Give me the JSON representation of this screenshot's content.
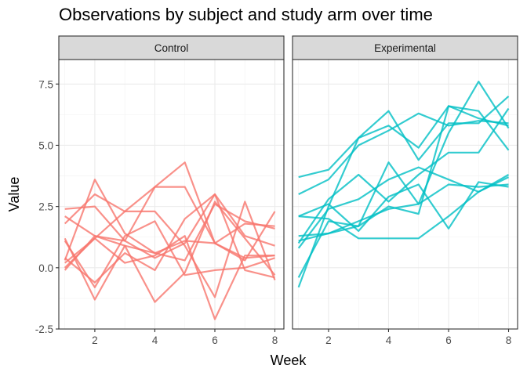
{
  "chart_data": {
    "type": "line",
    "title": "Observations by subject and study arm over time",
    "xlabel": "Week",
    "ylabel": "Value",
    "xlim": [
      0.8,
      8.3
    ],
    "ylim": [
      -2.5,
      8.5
    ],
    "x_ticks": [
      2,
      4,
      6,
      8
    ],
    "y_ticks": [
      -2.5,
      0.0,
      2.5,
      5.0,
      7.5
    ],
    "y_tick_labels": [
      "-2.5",
      "0.0",
      "2.5",
      "5.0",
      "7.5"
    ],
    "grid": true,
    "facets": [
      {
        "label": "Control",
        "color": "#F8766D",
        "x": [
          1,
          2,
          3,
          4,
          5,
          6,
          7,
          8
        ],
        "series": [
          {
            "values": [
              2.1,
              1.3,
              1.1,
              0.4,
              1.0,
              3.0,
              1.3,
              0.9
            ]
          },
          {
            "values": [
              1.1,
              -0.8,
              1.3,
              1.9,
              -0.3,
              -0.1,
              0.0,
              0.4
            ]
          },
          {
            "values": [
              2.4,
              2.5,
              1.1,
              3.3,
              3.3,
              1.0,
              1.8,
              1.7
            ]
          },
          {
            "values": [
              0.3,
              3.6,
              1.4,
              0.6,
              0.3,
              2.6,
              1.9,
              1.6
            ]
          },
          {
            "values": [
              0.4,
              -0.6,
              0.6,
              -0.1,
              2.0,
              3.0,
              -0.1,
              -0.4
            ]
          },
          {
            "values": [
              0.0,
              1.2,
              0.2,
              0.5,
              1.3,
              -2.1,
              0.5,
              0.5
            ]
          },
          {
            "values": [
              1.8,
              3.0,
              2.3,
              2.3,
              0.9,
              -1.2,
              2.7,
              -0.5
            ]
          },
          {
            "values": [
              0.2,
              1.2,
              2.3,
              3.3,
              4.3,
              1.0,
              0.3,
              2.3
            ]
          },
          {
            "values": [
              1.2,
              -1.3,
              0.9,
              -1.4,
              -0.2,
              2.7,
              1.2,
              -0.3
            ]
          },
          {
            "values": [
              -0.1,
              1.3,
              0.9,
              0.6,
              1.1,
              1.0,
              0.4,
              0.5
            ]
          }
        ]
      },
      {
        "label": "Experimental",
        "color": "#00BFC4",
        "x": [
          1,
          2,
          3,
          4,
          5,
          6,
          7,
          8
        ],
        "series": [
          {
            "values": [
              3.0,
              3.6,
              5.0,
              5.6,
              6.3,
              5.8,
              6.0,
              5.9
            ]
          },
          {
            "values": [
              1.1,
              1.4,
              1.9,
              2.4,
              2.6,
              3.4,
              3.3,
              3.4
            ]
          },
          {
            "values": [
              3.7,
              4.0,
              5.3,
              5.8,
              4.9,
              6.6,
              6.4,
              4.8
            ]
          },
          {
            "values": [
              -0.4,
              1.9,
              1.7,
              4.3,
              2.6,
              5.5,
              7.6,
              5.7
            ]
          },
          {
            "values": [
              1.0,
              2.8,
              3.8,
              2.7,
              3.8,
              4.7,
              4.7,
              6.5
            ]
          },
          {
            "values": [
              1.3,
              1.4,
              1.7,
              2.5,
              2.2,
              6.6,
              6.1,
              5.8
            ]
          },
          {
            "values": [
              2.1,
              2.0,
              1.2,
              1.2,
              1.2,
              2.1,
              3.1,
              3.8
            ]
          },
          {
            "values": [
              -0.8,
              2.5,
              5.3,
              6.4,
              4.4,
              5.9,
              5.9,
              7.0
            ]
          },
          {
            "values": [
              2.1,
              2.6,
              1.5,
              2.9,
              3.4,
              1.6,
              3.5,
              3.3
            ]
          },
          {
            "values": [
              0.8,
              2.4,
              2.8,
              3.6,
              4.1,
              3.6,
              3.1,
              3.7
            ]
          }
        ]
      }
    ]
  }
}
